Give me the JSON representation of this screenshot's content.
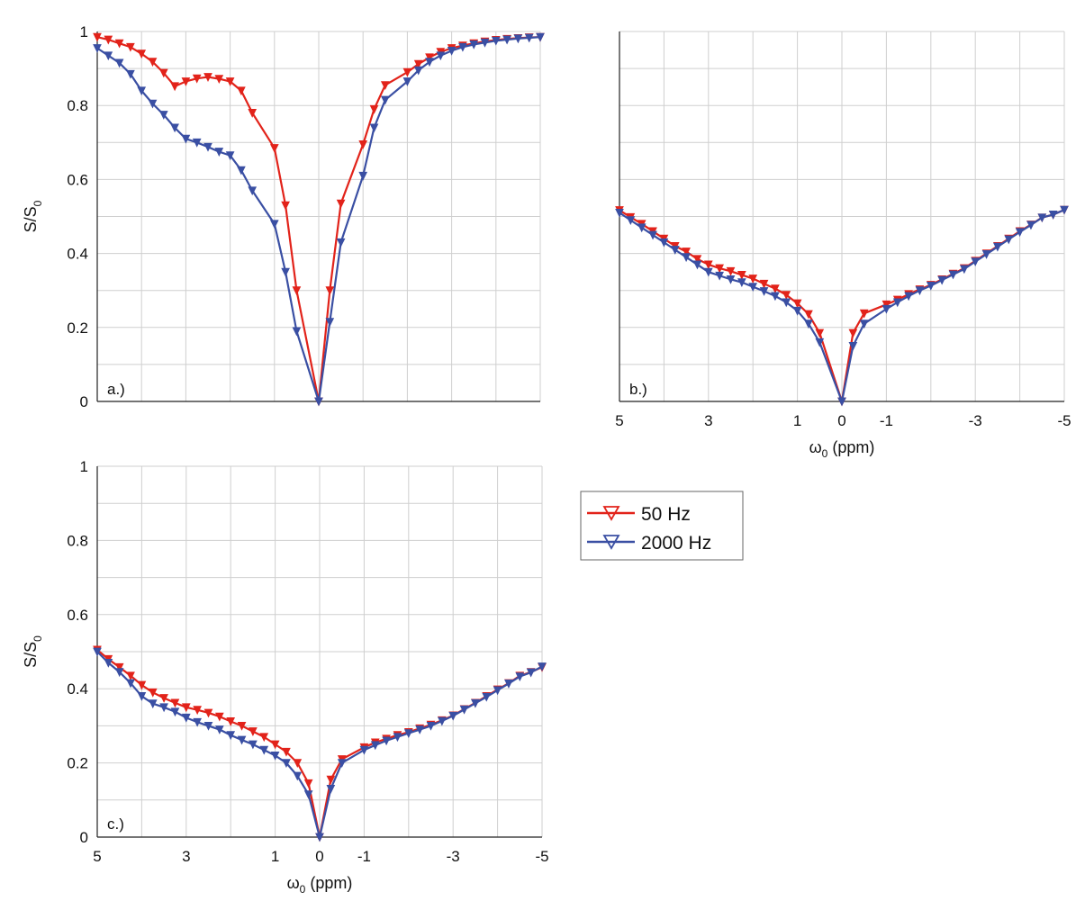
{
  "chart_data": [
    {
      "type": "line",
      "panel_label": "a.)",
      "ylabel": "S/S0",
      "ylabel_main": "S/S",
      "ylabel_sub": "0",
      "xlabel": "",
      "xlim": [
        5,
        -5
      ],
      "ylim": [
        0,
        1
      ],
      "x_ticks": [],
      "y_ticks": [
        "0",
        "0.2",
        "0.4",
        "0.6",
        "0.8",
        "1"
      ],
      "grid": true,
      "series": [
        {
          "name": "50 Hz",
          "color": "#e2231a",
          "points": [
            [
              5,
              0.985
            ],
            [
              4.75,
              0.978
            ],
            [
              4.5,
              0.968
            ],
            [
              4.25,
              0.958
            ],
            [
              4,
              0.94
            ],
            [
              3.75,
              0.918
            ],
            [
              3.5,
              0.888
            ],
            [
              3.25,
              0.852
            ],
            [
              3,
              0.865
            ],
            [
              2.75,
              0.873
            ],
            [
              2.5,
              0.877
            ],
            [
              2.25,
              0.872
            ],
            [
              2,
              0.865
            ],
            [
              1.75,
              0.84
            ],
            [
              1.5,
              0.78
            ],
            [
              1,
              0.685
            ],
            [
              0.75,
              0.53
            ],
            [
              0.5,
              0.3
            ],
            [
              0,
              0.0
            ],
            [
              -0.25,
              0.3
            ],
            [
              -0.5,
              0.535
            ],
            [
              -1,
              0.695
            ],
            [
              -1.25,
              0.79
            ],
            [
              -1.5,
              0.855
            ],
            [
              -2,
              0.89
            ],
            [
              -2.25,
              0.912
            ],
            [
              -2.5,
              0.93
            ],
            [
              -2.75,
              0.945
            ],
            [
              -3,
              0.955
            ],
            [
              -3.25,
              0.962
            ],
            [
              -3.5,
              0.968
            ],
            [
              -3.75,
              0.973
            ],
            [
              -4,
              0.977
            ],
            [
              -4.25,
              0.98
            ],
            [
              -4.5,
              0.982
            ],
            [
              -4.75,
              0.984
            ],
            [
              -5,
              0.985
            ]
          ]
        },
        {
          "name": "2000 Hz",
          "color": "#3a4fa3",
          "points": [
            [
              5,
              0.955
            ],
            [
              4.75,
              0.935
            ],
            [
              4.5,
              0.915
            ],
            [
              4.25,
              0.885
            ],
            [
              4,
              0.84
            ],
            [
              3.75,
              0.805
            ],
            [
              3.5,
              0.775
            ],
            [
              3.25,
              0.74
            ],
            [
              3,
              0.71
            ],
            [
              2.75,
              0.7
            ],
            [
              2.5,
              0.688
            ],
            [
              2.25,
              0.675
            ],
            [
              2,
              0.665
            ],
            [
              1.75,
              0.625
            ],
            [
              1.5,
              0.57
            ],
            [
              1,
              0.48
            ],
            [
              0.75,
              0.35
            ],
            [
              0.5,
              0.19
            ],
            [
              0,
              0.0
            ],
            [
              -0.25,
              0.215
            ],
            [
              -0.5,
              0.43
            ],
            [
              -1,
              0.61
            ],
            [
              -1.25,
              0.74
            ],
            [
              -1.5,
              0.815
            ],
            [
              -2,
              0.865
            ],
            [
              -2.25,
              0.895
            ],
            [
              -2.5,
              0.918
            ],
            [
              -2.75,
              0.935
            ],
            [
              -3,
              0.948
            ],
            [
              -3.25,
              0.958
            ],
            [
              -3.5,
              0.965
            ],
            [
              -3.75,
              0.97
            ],
            [
              -4,
              0.975
            ],
            [
              -4.25,
              0.978
            ],
            [
              -4.5,
              0.981
            ],
            [
              -4.75,
              0.983
            ],
            [
              -5,
              0.985
            ]
          ]
        }
      ]
    },
    {
      "type": "line",
      "panel_label": "b.)",
      "ylabel": "",
      "xlabel": "ω0 (ppm)",
      "xlabel_main": "ω",
      "xlabel_sub": "0",
      "xlabel_rest": " (ppm)",
      "xlim": [
        5,
        -5
      ],
      "ylim": [
        0,
        1
      ],
      "x_ticks": [
        "5",
        "3",
        "1",
        "0",
        "-1",
        "-3",
        "-5"
      ],
      "y_ticks": [],
      "grid": true,
      "series": [
        {
          "name": "50 Hz",
          "color": "#e2231a",
          "points": [
            [
              5,
              0.517
            ],
            [
              4.75,
              0.498
            ],
            [
              4.5,
              0.48
            ],
            [
              4.25,
              0.46
            ],
            [
              4,
              0.44
            ],
            [
              3.75,
              0.42
            ],
            [
              3.5,
              0.405
            ],
            [
              3.25,
              0.385
            ],
            [
              3,
              0.37
            ],
            [
              2.75,
              0.36
            ],
            [
              2.5,
              0.352
            ],
            [
              2.25,
              0.342
            ],
            [
              2,
              0.332
            ],
            [
              1.75,
              0.318
            ],
            [
              1.5,
              0.305
            ],
            [
              1.25,
              0.288
            ],
            [
              1,
              0.265
            ],
            [
              0.75,
              0.236
            ],
            [
              0.5,
              0.185
            ],
            [
              0,
              0.0
            ],
            [
              -0.25,
              0.185
            ],
            [
              -0.5,
              0.238
            ],
            [
              -1,
              0.262
            ],
            [
              -1.25,
              0.275
            ],
            [
              -1.5,
              0.29
            ],
            [
              -1.75,
              0.303
            ],
            [
              -2,
              0.315
            ],
            [
              -2.25,
              0.33
            ],
            [
              -2.5,
              0.345
            ],
            [
              -2.75,
              0.36
            ],
            [
              -3,
              0.38
            ],
            [
              -3.25,
              0.4
            ],
            [
              -3.5,
              0.42
            ],
            [
              -3.75,
              0.44
            ],
            [
              -4,
              0.46
            ],
            [
              -4.25,
              0.478
            ],
            [
              -4.5,
              0.497
            ],
            [
              -4.75,
              0.505
            ],
            [
              -5,
              0.518
            ]
          ]
        },
        {
          "name": "2000 Hz",
          "color": "#3a4fa3",
          "points": [
            [
              5,
              0.51
            ],
            [
              4.75,
              0.49
            ],
            [
              4.5,
              0.47
            ],
            [
              4.25,
              0.45
            ],
            [
              4,
              0.43
            ],
            [
              3.75,
              0.41
            ],
            [
              3.5,
              0.39
            ],
            [
              3.25,
              0.37
            ],
            [
              3,
              0.35
            ],
            [
              2.75,
              0.34
            ],
            [
              2.5,
              0.33
            ],
            [
              2.25,
              0.322
            ],
            [
              2,
              0.31
            ],
            [
              1.75,
              0.298
            ],
            [
              1.5,
              0.285
            ],
            [
              1.25,
              0.268
            ],
            [
              1,
              0.245
            ],
            [
              0.75,
              0.21
            ],
            [
              0.5,
              0.16
            ],
            [
              0,
              0.0
            ],
            [
              -0.25,
              0.15
            ],
            [
              -0.5,
              0.21
            ],
            [
              -1,
              0.25
            ],
            [
              -1.25,
              0.268
            ],
            [
              -1.5,
              0.285
            ],
            [
              -1.75,
              0.3
            ],
            [
              -2,
              0.313
            ],
            [
              -2.25,
              0.328
            ],
            [
              -2.5,
              0.343
            ],
            [
              -2.75,
              0.358
            ],
            [
              -3,
              0.378
            ],
            [
              -3.25,
              0.398
            ],
            [
              -3.5,
              0.418
            ],
            [
              -3.75,
              0.438
            ],
            [
              -4,
              0.458
            ],
            [
              -4.25,
              0.477
            ],
            [
              -4.5,
              0.497
            ],
            [
              -4.75,
              0.505
            ],
            [
              -5,
              0.518
            ]
          ]
        }
      ]
    },
    {
      "type": "line",
      "panel_label": "c.)",
      "ylabel": "S/S0",
      "ylabel_main": "S/S",
      "ylabel_sub": "0",
      "xlabel": "ω0 (ppm)",
      "xlabel_main": "ω",
      "xlabel_sub": "0",
      "xlabel_rest": " (ppm)",
      "xlim": [
        5,
        -5
      ],
      "ylim": [
        0,
        1
      ],
      "x_ticks": [
        "5",
        "3",
        "1",
        "0",
        "-1",
        "-3",
        "-5"
      ],
      "y_ticks": [
        "0",
        "0.2",
        "0.4",
        "0.6",
        "0.8",
        "1"
      ],
      "grid": true,
      "series": [
        {
          "name": "50 Hz",
          "color": "#e2231a",
          "points": [
            [
              5,
              0.505
            ],
            [
              4.75,
              0.48
            ],
            [
              4.5,
              0.458
            ],
            [
              4.25,
              0.435
            ],
            [
              4,
              0.41
            ],
            [
              3.75,
              0.39
            ],
            [
              3.5,
              0.375
            ],
            [
              3.25,
              0.362
            ],
            [
              3,
              0.35
            ],
            [
              2.75,
              0.343
            ],
            [
              2.5,
              0.335
            ],
            [
              2.25,
              0.325
            ],
            [
              2,
              0.312
            ],
            [
              1.75,
              0.3
            ],
            [
              1.5,
              0.285
            ],
            [
              1.25,
              0.27
            ],
            [
              1,
              0.25
            ],
            [
              0.75,
              0.23
            ],
            [
              0.5,
              0.2
            ],
            [
              0.25,
              0.145
            ],
            [
              0,
              0.0
            ],
            [
              -0.25,
              0.155
            ],
            [
              -0.5,
              0.21
            ],
            [
              -1,
              0.242
            ],
            [
              -1.25,
              0.255
            ],
            [
              -1.5,
              0.265
            ],
            [
              -1.75,
              0.275
            ],
            [
              -2,
              0.283
            ],
            [
              -2.25,
              0.293
            ],
            [
              -2.5,
              0.303
            ],
            [
              -2.75,
              0.315
            ],
            [
              -3,
              0.328
            ],
            [
              -3.25,
              0.345
            ],
            [
              -3.5,
              0.362
            ],
            [
              -3.75,
              0.38
            ],
            [
              -4,
              0.398
            ],
            [
              -4.25,
              0.415
            ],
            [
              -4.5,
              0.435
            ],
            [
              -4.75,
              0.445
            ],
            [
              -5,
              0.458
            ]
          ]
        },
        {
          "name": "2000 Hz",
          "color": "#3a4fa3",
          "points": [
            [
              5,
              0.5
            ],
            [
              4.75,
              0.47
            ],
            [
              4.5,
              0.445
            ],
            [
              4.25,
              0.415
            ],
            [
              4,
              0.38
            ],
            [
              3.75,
              0.36
            ],
            [
              3.5,
              0.35
            ],
            [
              3.25,
              0.338
            ],
            [
              3,
              0.322
            ],
            [
              2.75,
              0.31
            ],
            [
              2.5,
              0.3
            ],
            [
              2.25,
              0.29
            ],
            [
              2,
              0.275
            ],
            [
              1.75,
              0.262
            ],
            [
              1.5,
              0.25
            ],
            [
              1.25,
              0.235
            ],
            [
              1,
              0.22
            ],
            [
              0.75,
              0.2
            ],
            [
              0.5,
              0.165
            ],
            [
              0.25,
              0.115
            ],
            [
              0,
              0.0
            ],
            [
              -0.25,
              0.13
            ],
            [
              -0.5,
              0.2
            ],
            [
              -1,
              0.235
            ],
            [
              -1.25,
              0.248
            ],
            [
              -1.5,
              0.26
            ],
            [
              -1.75,
              0.27
            ],
            [
              -2,
              0.28
            ],
            [
              -2.25,
              0.29
            ],
            [
              -2.5,
              0.3
            ],
            [
              -2.75,
              0.313
            ],
            [
              -3,
              0.327
            ],
            [
              -3.25,
              0.344
            ],
            [
              -3.5,
              0.361
            ],
            [
              -3.75,
              0.378
            ],
            [
              -4,
              0.396
            ],
            [
              -4.25,
              0.414
            ],
            [
              -4.5,
              0.433
            ],
            [
              -4.75,
              0.444
            ],
            [
              -5,
              0.46
            ]
          ]
        }
      ]
    }
  ],
  "legend": {
    "items": [
      {
        "label": "50 Hz",
        "color": "#e2231a"
      },
      {
        "label": "2000 Hz",
        "color": "#3a4fa3"
      }
    ]
  }
}
